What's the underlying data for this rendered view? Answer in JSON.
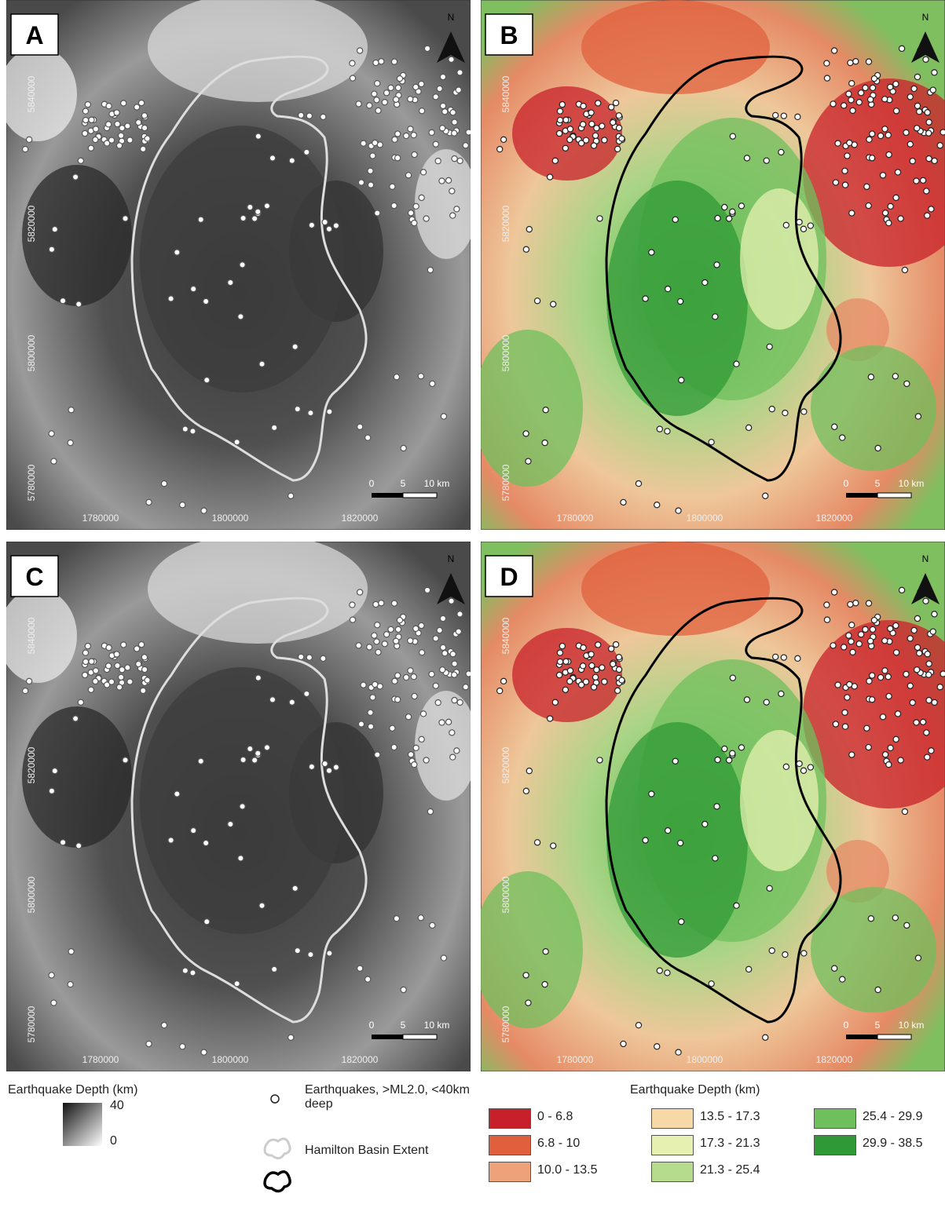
{
  "panels": [
    {
      "label": "A",
      "x_labels": [
        "1780000",
        "1800000",
        "1820000"
      ],
      "y_labels": [
        "5840000",
        "5820000",
        "5800000",
        "5780000"
      ],
      "scale": [
        "0",
        "5",
        "10 km"
      ],
      "north": "N"
    },
    {
      "label": "B",
      "x_labels": [
        "1780000",
        "1800000",
        "1820000"
      ],
      "y_labels": [
        "5840000",
        "5820000",
        "5800000",
        "5780000"
      ],
      "scale": [
        "0",
        "5",
        "10 km"
      ],
      "north": "N"
    },
    {
      "label": "C",
      "x_labels": [
        "1780000",
        "1800000",
        "1820000"
      ],
      "y_labels": [
        "5840000",
        "5820000",
        "5800000",
        "5780000"
      ],
      "scale": [
        "0",
        "5",
        "10 km"
      ],
      "north": "N"
    },
    {
      "label": "D",
      "x_labels": [
        "1780000",
        "1800000",
        "1820000"
      ],
      "y_labels": [
        "5840000",
        "5820000",
        "5800000",
        "5780000"
      ],
      "scale": [
        "0",
        "5",
        "10 km"
      ],
      "north": "N"
    }
  ],
  "legend": {
    "gray_title": "Earthquake Depth (km)",
    "gray_max": "40",
    "gray_min": "0",
    "quake": "Earthquakes, >ML2.0, <40km deep",
    "basin": "Hamilton Basin Extent",
    "classes_title": "Earthquake Depth (km)",
    "classes": [
      {
        "label": "0 - 6.8",
        "color": "#c8202a"
      },
      {
        "label": "6.8 - 10",
        "color": "#e0603e"
      },
      {
        "label": "10.0 - 13.5",
        "color": "#eea27a"
      },
      {
        "label": "13.5 - 17.3",
        "color": "#f7d9a8"
      },
      {
        "label": "17.3 - 21.3",
        "color": "#e6f0b0"
      },
      {
        "label": "21.3 - 25.4",
        "color": "#b5dc8c"
      },
      {
        "label": "25.4 - 29.9",
        "color": "#6fbf5c"
      },
      {
        "label": "29.9 - 38.5",
        "color": "#2f9a35"
      }
    ]
  }
}
